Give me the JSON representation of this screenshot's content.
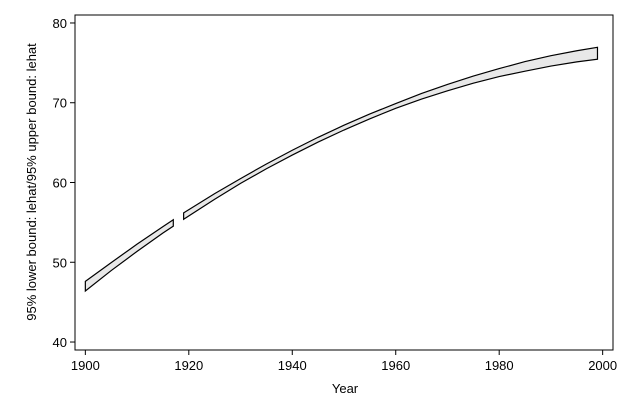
{
  "chart_data": {
    "type": "range-area",
    "x_label": "Year",
    "y_label": "95% lower bound: lehat/95% upper bound: lehat",
    "x": [
      1900,
      1905,
      1910,
      1915,
      1917,
      1918,
      1919,
      1925,
      1930,
      1935,
      1940,
      1945,
      1950,
      1955,
      1960,
      1965,
      1970,
      1975,
      1980,
      1985,
      1990,
      1995,
      1999
    ],
    "series": [
      {
        "role": "lower",
        "values": [
          46.4,
          48.96,
          51.37,
          53.67,
          54.53,
          null,
          55.39,
          57.9,
          59.89,
          61.72,
          63.44,
          65.07,
          66.58,
          67.99,
          69.3,
          70.46,
          71.5,
          72.45,
          73.28,
          73.96,
          74.6,
          75.12,
          75.45
        ]
      },
      {
        "role": "upper",
        "values": [
          47.6,
          49.96,
          52.27,
          54.47,
          55.33,
          null,
          56.19,
          58.6,
          60.49,
          62.32,
          64.04,
          65.67,
          67.18,
          68.59,
          69.9,
          71.16,
          72.3,
          73.35,
          74.28,
          75.16,
          75.9,
          76.52,
          76.95
        ]
      }
    ],
    "fill_color": "#e8e8e8",
    "line_color": "#000000",
    "xlim": [
      1898,
      2002
    ],
    "ylim": [
      39,
      81
    ],
    "xticks": [
      1900,
      1920,
      1940,
      1960,
      1980,
      2000
    ],
    "yticks": [
      40,
      50,
      60,
      70,
      80
    ],
    "grid": false
  }
}
